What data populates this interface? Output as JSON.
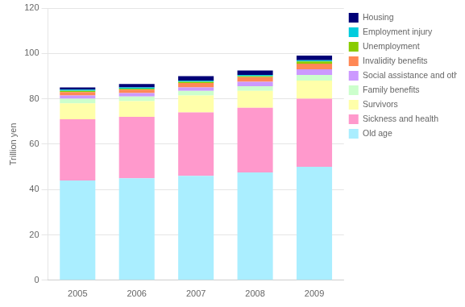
{
  "chart_data": {
    "type": "bar",
    "stacked": true,
    "categories": [
      "2005",
      "2006",
      "2007",
      "2008",
      "2009"
    ],
    "series": [
      {
        "name": "Old age",
        "color": "#aaeeff",
        "values": [
          44.0,
          45.0,
          46.0,
          47.5,
          50.0
        ]
      },
      {
        "name": "Sickness and health",
        "color": "#ff99cc",
        "values": [
          27.0,
          27.0,
          28.0,
          28.5,
          30.0
        ]
      },
      {
        "name": "Survivors",
        "color": "#ffffaa",
        "values": [
          7.0,
          7.0,
          7.5,
          7.5,
          8.0
        ]
      },
      {
        "name": "Family benefits",
        "color": "#ccffcc",
        "values": [
          2.0,
          2.0,
          2.0,
          2.0,
          2.5
        ]
      },
      {
        "name": "Social assistance and others",
        "color": "#cc99ff",
        "values": [
          1.5,
          1.5,
          1.5,
          2.0,
          2.5
        ]
      },
      {
        "name": "Invalidity benefits",
        "color": "#ff8855",
        "values": [
          1.5,
          1.5,
          2.0,
          2.0,
          2.5
        ]
      },
      {
        "name": "Unemployment",
        "color": "#88cc00",
        "values": [
          0.5,
          0.5,
          0.5,
          0.5,
          1.0
        ]
      },
      {
        "name": "Employment injury",
        "color": "#00ccdd",
        "values": [
          0.5,
          0.5,
          0.5,
          0.5,
          0.5
        ]
      },
      {
        "name": "Housing",
        "color": "#000077",
        "values": [
          1.0,
          1.5,
          2.0,
          2.0,
          2.0
        ]
      }
    ],
    "ylabel": "Trillion yen",
    "ylim": [
      0,
      120
    ],
    "yticks": [
      0,
      20,
      40,
      60,
      80,
      100,
      120
    ],
    "grid": true,
    "legend": "right"
  }
}
